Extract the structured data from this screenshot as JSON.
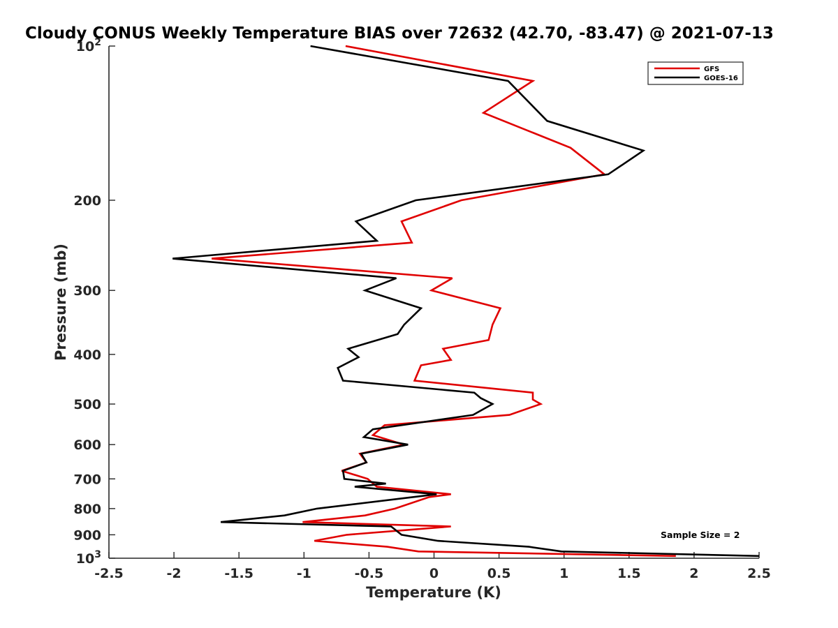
{
  "chart_data": {
    "type": "line",
    "title": "Cloudy CONUS Weekly Temperature BIAS over 72632 (42.70, -83.47) @ 2021-07-13",
    "xlabel": "Temperature (K)",
    "ylabel": "Pressure (mb)",
    "xlim": [
      -2.5,
      2.5
    ],
    "ylim": [
      100,
      1000
    ],
    "y_scale": "log",
    "y_reversed": true,
    "grid": false,
    "legend_position": "top-right",
    "x_ticks": [
      "-2.5",
      "-2",
      "-1.5",
      "-1",
      "-0.5",
      "0",
      "0.5",
      "1",
      "1.5",
      "2",
      "2.5"
    ],
    "y_ticks": [
      {
        "value": 100,
        "base": "10",
        "exp": "2"
      },
      {
        "value": 200,
        "label": "200"
      },
      {
        "value": 300,
        "label": "300"
      },
      {
        "value": 400,
        "label": "400"
      },
      {
        "value": 500,
        "label": "500"
      },
      {
        "value": 600,
        "label": "600"
      },
      {
        "value": 700,
        "label": "700"
      },
      {
        "value": 800,
        "label": "800"
      },
      {
        "value": 900,
        "label": "900"
      },
      {
        "value": 1000,
        "base": "10",
        "exp": "3"
      }
    ],
    "annotation": "Sample Size = 2",
    "series": [
      {
        "name": "GFS",
        "color": "#e00000",
        "points": [
          {
            "t": -0.68,
            "p": 100
          },
          {
            "t": 0.76,
            "p": 117
          },
          {
            "t": 0.38,
            "p": 135
          },
          {
            "t": 1.05,
            "p": 158
          },
          {
            "t": 1.31,
            "p": 178
          },
          {
            "t": 0.21,
            "p": 200
          },
          {
            "t": -0.25,
            "p": 220
          },
          {
            "t": -0.17,
            "p": 242
          },
          {
            "t": -1.71,
            "p": 260
          },
          {
            "t": 0.14,
            "p": 284
          },
          {
            "t": -0.02,
            "p": 300
          },
          {
            "t": 0.51,
            "p": 325
          },
          {
            "t": 0.45,
            "p": 350
          },
          {
            "t": 0.42,
            "p": 375
          },
          {
            "t": 0.07,
            "p": 390
          },
          {
            "t": 0.13,
            "p": 410
          },
          {
            "t": -0.1,
            "p": 420
          },
          {
            "t": -0.15,
            "p": 450
          },
          {
            "t": 0.76,
            "p": 475
          },
          {
            "t": 0.76,
            "p": 490
          },
          {
            "t": 0.82,
            "p": 500
          },
          {
            "t": 0.58,
            "p": 525
          },
          {
            "t": -0.38,
            "p": 550
          },
          {
            "t": -0.47,
            "p": 575
          },
          {
            "t": -0.23,
            "p": 600
          },
          {
            "t": -0.57,
            "p": 625
          },
          {
            "t": -0.52,
            "p": 650
          },
          {
            "t": -0.71,
            "p": 675
          },
          {
            "t": -0.51,
            "p": 700
          },
          {
            "t": -0.44,
            "p": 725
          },
          {
            "t": 0.13,
            "p": 750
          },
          {
            "t": -0.04,
            "p": 760
          },
          {
            "t": -0.3,
            "p": 800
          },
          {
            "t": -0.53,
            "p": 825
          },
          {
            "t": -1.01,
            "p": 850
          },
          {
            "t": 0.13,
            "p": 867
          },
          {
            "t": -0.67,
            "p": 900
          },
          {
            "t": -0.92,
            "p": 925
          },
          {
            "t": -0.36,
            "p": 950
          },
          {
            "t": -0.12,
            "p": 970
          },
          {
            "t": 1.86,
            "p": 990
          }
        ]
      },
      {
        "name": "GOES-16",
        "color": "#000000",
        "points": [
          {
            "t": -0.95,
            "p": 100
          },
          {
            "t": 0.57,
            "p": 117
          },
          {
            "t": 0.87,
            "p": 140
          },
          {
            "t": 1.61,
            "p": 160
          },
          {
            "t": 1.34,
            "p": 178
          },
          {
            "t": -0.14,
            "p": 200
          },
          {
            "t": -0.6,
            "p": 220
          },
          {
            "t": -0.44,
            "p": 240
          },
          {
            "t": -2.01,
            "p": 260
          },
          {
            "t": -0.29,
            "p": 284
          },
          {
            "t": -0.53,
            "p": 300
          },
          {
            "t": -0.1,
            "p": 325
          },
          {
            "t": -0.23,
            "p": 350
          },
          {
            "t": -0.28,
            "p": 365
          },
          {
            "t": -0.66,
            "p": 390
          },
          {
            "t": -0.58,
            "p": 405
          },
          {
            "t": -0.74,
            "p": 425
          },
          {
            "t": -0.7,
            "p": 450
          },
          {
            "t": 0.31,
            "p": 475
          },
          {
            "t": 0.36,
            "p": 487
          },
          {
            "t": 0.45,
            "p": 500
          },
          {
            "t": 0.3,
            "p": 525
          },
          {
            "t": -0.47,
            "p": 560
          },
          {
            "t": -0.54,
            "p": 580
          },
          {
            "t": -0.2,
            "p": 600
          },
          {
            "t": -0.56,
            "p": 625
          },
          {
            "t": -0.52,
            "p": 650
          },
          {
            "t": -0.7,
            "p": 675
          },
          {
            "t": -0.69,
            "p": 700
          },
          {
            "t": -0.37,
            "p": 715
          },
          {
            "t": -0.61,
            "p": 725
          },
          {
            "t": 0.02,
            "p": 750
          },
          {
            "t": -0.9,
            "p": 800
          },
          {
            "t": -1.15,
            "p": 825
          },
          {
            "t": -1.64,
            "p": 850
          },
          {
            "t": -0.33,
            "p": 867
          },
          {
            "t": -0.25,
            "p": 900
          },
          {
            "t": 0.03,
            "p": 925
          },
          {
            "t": 0.73,
            "p": 950
          },
          {
            "t": 0.98,
            "p": 970
          },
          {
            "t": 2.5,
            "p": 990
          }
        ]
      }
    ]
  }
}
